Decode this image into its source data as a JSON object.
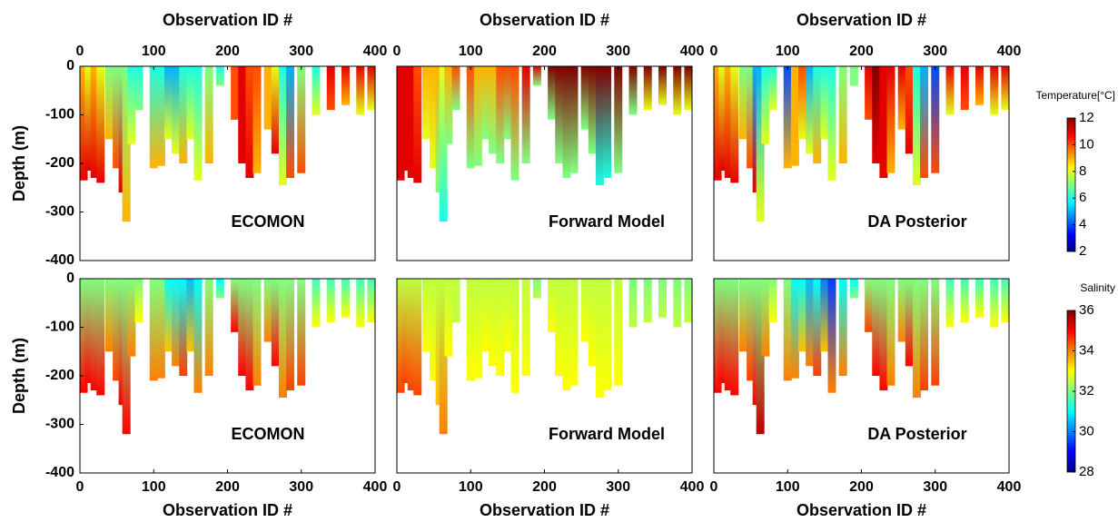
{
  "chart_data": [
    {
      "type": "profile",
      "title": "ECOMON",
      "xlabel": "Observation ID #",
      "ylabel": "Depth (m)",
      "xlim": [
        0,
        400
      ],
      "xticks": [
        0,
        100,
        200,
        300,
        400
      ],
      "ylim": [
        -400,
        0
      ],
      "yticks": [
        0,
        -100,
        -200,
        -300,
        -400
      ],
      "x": [
        5,
        12,
        20,
        28,
        40,
        50,
        58,
        63,
        70,
        80,
        100,
        110,
        120,
        130,
        140,
        150,
        160,
        175,
        190,
        210,
        220,
        230,
        240,
        255,
        265,
        275,
        285,
        300,
        320,
        340,
        360,
        380,
        395
      ],
      "depth": [
        -235,
        -215,
        -230,
        -240,
        -150,
        -210,
        -260,
        -320,
        -160,
        -90,
        -210,
        -205,
        -150,
        -180,
        -200,
        -150,
        -235,
        -200,
        -40,
        -110,
        -200,
        -230,
        -220,
        -130,
        -180,
        -245,
        -230,
        -220,
        -100,
        -90,
        -80,
        -100,
        -90
      ],
      "top_values": [
        9,
        8,
        9,
        8,
        7,
        7,
        7,
        7,
        6,
        6,
        6,
        6,
        5,
        5,
        6,
        6,
        6,
        7,
        6,
        10,
        11,
        10,
        10,
        9,
        8,
        6,
        5,
        7,
        6,
        11,
        11,
        11,
        11
      ],
      "bottom_values": [
        11,
        11,
        11,
        11,
        9,
        10,
        11,
        9,
        8,
        7,
        9,
        9,
        8,
        8,
        9,
        8,
        8,
        9,
        7,
        10,
        11,
        11,
        9,
        9,
        11,
        8,
        10,
        10,
        8,
        10,
        9,
        8,
        8
      ]
    },
    {
      "type": "profile",
      "title": "Forward Model",
      "xlabel": "Observation ID #",
      "xlim": [
        0,
        400
      ],
      "xticks": [
        0,
        100,
        200,
        300,
        400
      ],
      "ylim": [
        -400,
        0
      ],
      "x": [
        5,
        12,
        20,
        28,
        40,
        50,
        58,
        63,
        70,
        80,
        100,
        110,
        120,
        130,
        140,
        150,
        160,
        175,
        190,
        210,
        220,
        230,
        240,
        255,
        265,
        275,
        285,
        300,
        320,
        340,
        360,
        380,
        395
      ],
      "depth": [
        -235,
        -215,
        -230,
        -240,
        -150,
        -210,
        -260,
        -320,
        -160,
        -90,
        -210,
        -205,
        -150,
        -180,
        -200,
        -150,
        -235,
        -200,
        -40,
        -110,
        -200,
        -230,
        -220,
        -130,
        -180,
        -245,
        -230,
        -220,
        -100,
        -90,
        -80,
        -100,
        -90
      ],
      "top_values": [
        11,
        11,
        11,
        10,
        9,
        9,
        9,
        8,
        9,
        10,
        10,
        9,
        9,
        9,
        10,
        10,
        10,
        11,
        11,
        12,
        12,
        12,
        12,
        12,
        12,
        12,
        12,
        12,
        12,
        12,
        12,
        12,
        12
      ],
      "bottom_values": [
        11,
        11,
        11,
        11,
        8,
        8,
        7,
        6,
        7,
        7,
        7,
        7,
        7,
        7,
        7,
        7,
        7,
        7,
        7,
        7,
        7,
        7,
        7,
        7,
        7,
        6,
        6,
        7,
        7,
        8,
        8,
        8,
        8
      ]
    },
    {
      "type": "profile",
      "title": "DA Posterior",
      "xlabel": "Observation ID #",
      "xlim": [
        0,
        400
      ],
      "xticks": [
        0,
        100,
        200,
        300,
        400
      ],
      "ylim": [
        -400,
        0
      ],
      "x": [
        5,
        12,
        20,
        28,
        40,
        50,
        58,
        63,
        70,
        80,
        100,
        110,
        120,
        130,
        140,
        150,
        160,
        175,
        190,
        210,
        220,
        230,
        240,
        255,
        265,
        275,
        285,
        300,
        320,
        340,
        360,
        380,
        395
      ],
      "depth": [
        -235,
        -215,
        -230,
        -240,
        -150,
        -210,
        -260,
        -320,
        -160,
        -90,
        -210,
        -205,
        -150,
        -180,
        -200,
        -150,
        -235,
        -200,
        -40,
        -110,
        -200,
        -230,
        -220,
        -130,
        -180,
        -245,
        -230,
        -220,
        -100,
        -90,
        -80,
        -100,
        -90
      ],
      "top_values": [
        9,
        8,
        9,
        8,
        7,
        7,
        5,
        5,
        6,
        6,
        4,
        9,
        10,
        5,
        6,
        6,
        6,
        7,
        7,
        11,
        12,
        11,
        11,
        11,
        10,
        6,
        5,
        4,
        11,
        11,
        11,
        11,
        11
      ],
      "bottom_values": [
        11,
        11,
        11,
        11,
        9,
        10,
        11,
        8,
        8,
        8,
        9,
        9,
        8,
        8,
        9,
        8,
        8,
        9,
        7,
        10,
        11,
        11,
        9,
        9,
        11,
        8,
        10,
        10,
        8,
        10,
        9,
        8,
        8
      ],
      "colorbar": {
        "label": "Temperature[°C]",
        "lim": [
          2,
          12
        ],
        "ticks": [
          2,
          4,
          6,
          8,
          10,
          12
        ]
      }
    },
    {
      "type": "profile",
      "title": "ECOMON",
      "xlabel": "Observation ID #",
      "ylabel": "Depth (m)",
      "xlim": [
        0,
        400
      ],
      "xticks": [
        0,
        100,
        200,
        300,
        400
      ],
      "ylim": [
        -400,
        0
      ],
      "yticks": [
        0,
        -100,
        -200,
        -300,
        -400
      ],
      "x": [
        5,
        12,
        20,
        28,
        40,
        50,
        58,
        63,
        70,
        80,
        100,
        110,
        120,
        130,
        140,
        150,
        160,
        175,
        190,
        210,
        220,
        230,
        240,
        255,
        265,
        275,
        285,
        300,
        320,
        340,
        360,
        380,
        395
      ],
      "depth": [
        -235,
        -215,
        -230,
        -240,
        -150,
        -210,
        -260,
        -320,
        -160,
        -90,
        -210,
        -205,
        -150,
        -180,
        -200,
        -150,
        -235,
        -200,
        -40,
        -110,
        -200,
        -230,
        -220,
        -130,
        -180,
        -245,
        -230,
        -220,
        -100,
        -90,
        -80,
        -100,
        -90
      ],
      "top_values": [
        32,
        32,
        32,
        32,
        32,
        32,
        32,
        32,
        32,
        32,
        32,
        32,
        31,
        31,
        31,
        30.5,
        31,
        32,
        31,
        32,
        32,
        32,
        32,
        32,
        32,
        32,
        32,
        32,
        31.5,
        31.5,
        31.5,
        31.5,
        31.5
      ],
      "bottom_values": [
        35,
        35,
        35,
        35,
        34,
        34.5,
        35,
        35,
        34,
        33,
        34,
        34,
        33.5,
        34,
        34.5,
        33.5,
        34,
        34,
        32,
        35,
        35,
        35,
        34,
        34,
        35,
        34,
        34.5,
        34.5,
        33,
        33,
        33,
        33,
        33
      ]
    },
    {
      "type": "profile",
      "title": "Forward Model",
      "xlabel": "Observation ID #",
      "xlim": [
        0,
        400
      ],
      "xticks": [
        0,
        100,
        200,
        300,
        400
      ],
      "ylim": [
        -400,
        0
      ],
      "x": [
        5,
        12,
        20,
        28,
        40,
        50,
        58,
        63,
        70,
        80,
        100,
        110,
        120,
        130,
        140,
        150,
        160,
        175,
        190,
        210,
        220,
        230,
        240,
        255,
        265,
        275,
        285,
        300,
        320,
        340,
        360,
        380,
        395
      ],
      "depth": [
        -235,
        -215,
        -230,
        -240,
        -150,
        -210,
        -260,
        -320,
        -160,
        -90,
        -210,
        -205,
        -150,
        -180,
        -200,
        -150,
        -235,
        -200,
        -40,
        -110,
        -200,
        -230,
        -220,
        -130,
        -180,
        -245,
        -230,
        -220,
        -100,
        -90,
        -80,
        -100,
        -90
      ],
      "top_values": [
        32.5,
        32.5,
        32.5,
        32.5,
        32.5,
        32.5,
        32.5,
        32.5,
        32.5,
        32.5,
        32.5,
        32.5,
        32.5,
        32.5,
        32.5,
        32.5,
        32.5,
        32.5,
        32,
        32.5,
        32.5,
        32.5,
        32.5,
        32.5,
        32.5,
        32.5,
        32.5,
        32.5,
        32,
        32,
        32,
        32,
        32
      ],
      "bottom_values": [
        34.5,
        34.5,
        34.5,
        34.5,
        33,
        33,
        33.5,
        34,
        33,
        32.5,
        33,
        33,
        33,
        33,
        33,
        33,
        33,
        33,
        32.5,
        33,
        33,
        33,
        33,
        33,
        33,
        33,
        33,
        33,
        32.5,
        32.5,
        32.5,
        32.5,
        32.5
      ]
    },
    {
      "type": "profile",
      "title": "DA Posterior",
      "xlabel": "Observation ID #",
      "xlim": [
        0,
        400
      ],
      "xticks": [
        0,
        100,
        200,
        300,
        400
      ],
      "ylim": [
        -400,
        0
      ],
      "x": [
        5,
        12,
        20,
        28,
        40,
        50,
        58,
        63,
        70,
        80,
        100,
        110,
        120,
        130,
        140,
        150,
        160,
        175,
        190,
        210,
        220,
        230,
        240,
        255,
        265,
        275,
        285,
        300,
        320,
        340,
        360,
        380,
        395
      ],
      "depth": [
        -235,
        -215,
        -230,
        -240,
        -150,
        -210,
        -260,
        -320,
        -160,
        -90,
        -210,
        -205,
        -150,
        -180,
        -200,
        -150,
        -235,
        -200,
        -40,
        -110,
        -200,
        -230,
        -220,
        -130,
        -180,
        -245,
        -230,
        -220,
        -100,
        -90,
        -80,
        -100,
        -90
      ],
      "top_values": [
        32,
        32,
        32,
        32,
        32,
        32,
        32,
        32,
        32,
        32,
        32,
        31,
        31,
        30.5,
        31,
        30,
        29.5,
        31,
        31,
        32,
        32,
        32,
        32,
        32,
        32,
        32,
        32,
        32,
        31.5,
        31.5,
        31.5,
        31.5,
        31.5
      ],
      "bottom_values": [
        35,
        35,
        35,
        35,
        34,
        34.5,
        35,
        35.5,
        34,
        33,
        34,
        34,
        33.5,
        34,
        34.5,
        33.5,
        34,
        34,
        32,
        34.5,
        35,
        35,
        34,
        34,
        35,
        34,
        34.5,
        34.5,
        33,
        33,
        33,
        33,
        33
      ],
      "colorbar": {
        "label": "Salinity",
        "lim": [
          28,
          36
        ],
        "ticks": [
          28,
          30,
          32,
          34,
          36
        ]
      }
    }
  ]
}
